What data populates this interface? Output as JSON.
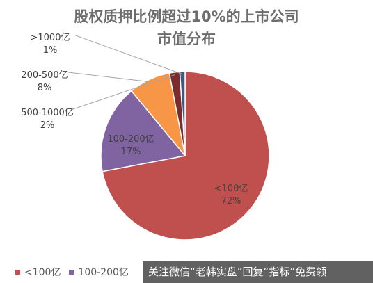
{
  "title_line1": "股权质押比例超过10%的上市公司",
  "title_line2": "市值分布",
  "watermark_text": "关注微信“老韩实盘”回复“指标”免费领",
  "chart_data": {
    "type": "pie",
    "title": "股权质押比例超过10%的上市公司市值分布",
    "slices": [
      {
        "name": "<100亿",
        "value": 72,
        "label": "72%",
        "color": "#c0504d"
      },
      {
        "name": "100-200亿",
        "value": 17,
        "label": "17%",
        "color": "#8064a2"
      },
      {
        "name": "200-500亿",
        "value": 8,
        "label": "8%",
        "color": "#f79646"
      },
      {
        "name": "500-1000亿",
        "value": 2,
        "label": "2%",
        "color": "#7b2c2c"
      },
      {
        "name": ">1000亿",
        "value": 1,
        "label": "1%",
        "color": "#3d5a80"
      }
    ],
    "legend_position": "bottom-left",
    "legend_visible": [
      "<100亿",
      "100-200亿"
    ]
  }
}
